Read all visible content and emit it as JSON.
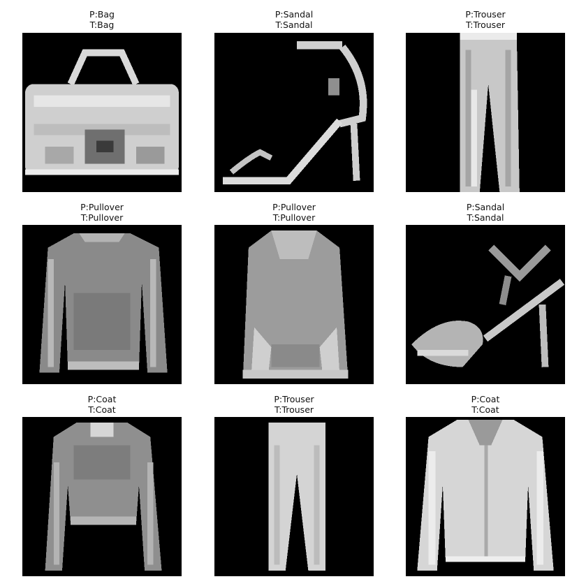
{
  "figure": {
    "panels": [
      {
        "pred": "P:Bag",
        "true": "T:Bag",
        "subject": "bag"
      },
      {
        "pred": "P:Sandal",
        "true": "T:Sandal",
        "subject": "sandal-heel"
      },
      {
        "pred": "P:Trouser",
        "true": "T:Trouser",
        "subject": "trouser"
      },
      {
        "pred": "P:Pullover",
        "true": "T:Pullover",
        "subject": "pullover"
      },
      {
        "pred": "P:Pullover",
        "true": "T:Pullover",
        "subject": "hoodie"
      },
      {
        "pred": "P:Sandal",
        "true": "T:Sandal",
        "subject": "sandal-strappy"
      },
      {
        "pred": "P:Coat",
        "true": "T:Coat",
        "subject": "coat-dark"
      },
      {
        "pred": "P:Trouser",
        "true": "T:Trouser",
        "subject": "trouser-light"
      },
      {
        "pred": "P:Coat",
        "true": "T:Coat",
        "subject": "coat-light"
      }
    ]
  }
}
